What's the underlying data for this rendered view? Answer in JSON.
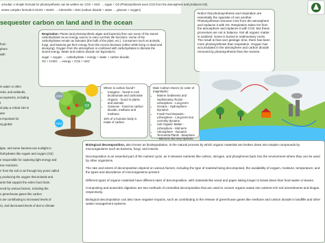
{
  "formulas": {
    "line1": "ormulas: A simple formula for photosynthesis can be written as: CO2 + H2O → sugar + O2 (Photosynthesis uses CO2 from the atmosphere and produces O2)",
    "line2": "esses complex formula is 6CO2 + 6H2O → C6H12O6 + 6O2 (carbon dioxide + water → glucose + oxygen)"
  },
  "title": "sequester carbon on land and in the ocean",
  "respiration": {
    "label": "Respiration:",
    "text": "Plants (and photosynthetic algae and bacteria) then use some of the stored carbohydrates as an energy source to carry out their life functions. Some of the carbohydrates remain as biomass (the bulk of the plant, etc.). Consumers such as animals, fungi, and bacteria get their energy from this excess biomass (either while living or dead and decaying). Oxygen from the atmosphere is combined with carbohydrates to liberate the stored energy. Water and carbon dioxide are byproducts.",
    "equation1": "sugar + oxygen → carbohydrate + energy + water + carbon dioxide",
    "equation2": "O2 + CH2O → energy + CO2 + H2O"
  },
  "balance": "Notice that photosynthesis and respiration are essentially the opposite of one another. Photosynthesis removes CO2 from the atmosphere and replaces it with O2. Respiration takes O2 from the atmosphere and replaces it with CO2. But these processes are not in balance. Not all organic matter is oxidized. Some is buried in sedimentary rocks. The result is that over geologic time, there has been more photosynthesis than respiration. Oxygen has accumulated in the atmosphere and carbon dioxide removed by photosynthesis than the reverse.",
  "left_top": [
    "from",
    "phere",
    "with"
  ],
  "left_middle": [
    "in water or other",
    "ndra, and wetlands,",
    "ecosystems, including",
    "l.",
    "id play a critical role in",
    "ater",
    "s important for",
    "ng global"
  ],
  "left_bottom": [
    "lgae, and some bacteria use sunlight to",
    "rbohydrates like sugars and oxygen (O2)",
    "e responsible for capturing light energy and",
    "ese reactions.",
    "n from the soil or air through tiny pores called",
    "y producing the oxygen that animals and",
    "ants that support the entire food chain.",
    "nced by various factors, including the",
    "e greenhouse gases like carbon",
    "s are contributing to increased levels of",
    "n), and decreased levels of due to climate"
  ],
  "diagram_labels": {
    "o2": "O2",
    "co2": "CO2",
    "h2o": "H2O"
  },
  "where_carbon": {
    "heading": "Where is carbon found?",
    "items": [
      "Inorganic - found in rock bicarbonate and carbonate",
      "Organic - found in plants and animals",
      "Gaseous - found as carbon dioxide, methane and methane."
    ],
    "note": "18% of a humans body is made of carbon."
  },
  "carbon_stores": {
    "heading": "Main Carbon Stores (in order of magnitude):",
    "items": [
      "Marine Sediments and Sedimentary Rocks - Lithosphere - Long-term",
      "Oceans - Hydrosphere - Dynamic",
      "Fossil Fuel Deposits - Lithosphere - Long-term but currently dynamic",
      "Soil Organic Matter - Lithosphere - Mid-term",
      "Atmosphere - Dynamic",
      "Terrestrial Plants - Biosphere - Mid-term but very dynamic"
    ]
  },
  "decomposition": {
    "label": "Biological decomposition,",
    "paragraphs": [
      "also known as biodegradation, is the natural process by which organic materials are broken down into simpler compounds by microorganisms such as bacteria, fungi, and insects.",
      "Decomposition is an essential part of the nutrient cycle, as it releases nutrients like carbon, nitrogen, and phosphorus back into the environment where they can be used by other organisms.",
      "The rate and extent of decomposition depend on various factors, including the type of material being decomposed, the availability of oxygen, moisture, temperature, and the types and abundance of microorganisms present.",
      "Different types of organic materials have different rates of decomposition, with materials like wood and paper taking longer to break down than food waste or leaves.",
      "Composting and anaerobic digestion are two methods of controlled decomposition that are used to convert organic waste into nutrient-rich soil amendments and biogas, respectively.",
      "Biological decomposition can also have negative impacts, such as contributing to the release of greenhouse gases like methane and carbon dioxide in landfills and other waste management systems."
    ]
  }
}
